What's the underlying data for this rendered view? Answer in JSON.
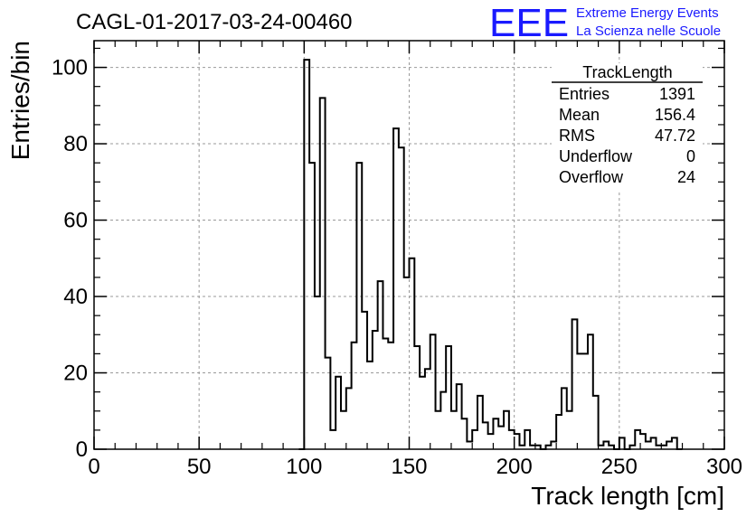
{
  "header": {
    "run_title": "CAGL-01-2017-03-24-00460",
    "logo_text": "EEE",
    "logo_line1": "Extreme Energy Events",
    "logo_line2": "La Scienza nelle Scuole",
    "logo_color": "#1a1aff"
  },
  "stats_box": {
    "title": "TrackLength",
    "rows": [
      {
        "label": "Entries",
        "value": "1391"
      },
      {
        "label": "Mean",
        "value": "156.4"
      },
      {
        "label": "RMS",
        "value": "47.72"
      },
      {
        "label": "Underflow",
        "value": "0"
      },
      {
        "label": "Overflow",
        "value": "24"
      }
    ]
  },
  "chart_data": {
    "type": "histogram",
    "xlabel": "Track length [cm]",
    "ylabel": "Entries/bin",
    "xlim": [
      0,
      300
    ],
    "ylim": [
      0,
      107
    ],
    "x_ticks": [
      0,
      50,
      100,
      150,
      200,
      250,
      300
    ],
    "y_ticks": [
      0,
      20,
      40,
      60,
      80,
      100
    ],
    "grid": true,
    "bin_width": 2.5,
    "bins": [
      {
        "x": 97.5,
        "y": 0
      },
      {
        "x": 100,
        "y": 102
      },
      {
        "x": 102.5,
        "y": 75
      },
      {
        "x": 105,
        "y": 40
      },
      {
        "x": 107.5,
        "y": 92
      },
      {
        "x": 110,
        "y": 24
      },
      {
        "x": 112.5,
        "y": 5
      },
      {
        "x": 115,
        "y": 19
      },
      {
        "x": 117.5,
        "y": 10
      },
      {
        "x": 120,
        "y": 16
      },
      {
        "x": 122.5,
        "y": 28
      },
      {
        "x": 125,
        "y": 75
      },
      {
        "x": 127.5,
        "y": 36
      },
      {
        "x": 130,
        "y": 23
      },
      {
        "x": 132.5,
        "y": 31
      },
      {
        "x": 135,
        "y": 44
      },
      {
        "x": 137.5,
        "y": 29
      },
      {
        "x": 140,
        "y": 28
      },
      {
        "x": 142.5,
        "y": 84
      },
      {
        "x": 145,
        "y": 79
      },
      {
        "x": 147.5,
        "y": 45
      },
      {
        "x": 150,
        "y": 50
      },
      {
        "x": 152.5,
        "y": 27
      },
      {
        "x": 155,
        "y": 19
      },
      {
        "x": 157.5,
        "y": 21
      },
      {
        "x": 160,
        "y": 30
      },
      {
        "x": 162.5,
        "y": 10
      },
      {
        "x": 165,
        "y": 15
      },
      {
        "x": 167.5,
        "y": 27
      },
      {
        "x": 170,
        "y": 10
      },
      {
        "x": 172.5,
        "y": 17
      },
      {
        "x": 175,
        "y": 8
      },
      {
        "x": 177.5,
        "y": 2
      },
      {
        "x": 180,
        "y": 5
      },
      {
        "x": 182.5,
        "y": 14
      },
      {
        "x": 185,
        "y": 7
      },
      {
        "x": 187.5,
        "y": 4
      },
      {
        "x": 190,
        "y": 8
      },
      {
        "x": 192.5,
        "y": 6
      },
      {
        "x": 195,
        "y": 10
      },
      {
        "x": 197.5,
        "y": 5
      },
      {
        "x": 200,
        "y": 4
      },
      {
        "x": 202.5,
        "y": 1
      },
      {
        "x": 205,
        "y": 5
      },
      {
        "x": 207.5,
        "y": 1
      },
      {
        "x": 210,
        "y": 1
      },
      {
        "x": 212.5,
        "y": 0
      },
      {
        "x": 215,
        "y": 1
      },
      {
        "x": 217.5,
        "y": 2
      },
      {
        "x": 220,
        "y": 9
      },
      {
        "x": 222.5,
        "y": 16
      },
      {
        "x": 225,
        "y": 10
      },
      {
        "x": 227.5,
        "y": 34
      },
      {
        "x": 230,
        "y": 25
      },
      {
        "x": 232.5,
        "y": 25
      },
      {
        "x": 235,
        "y": 30
      },
      {
        "x": 237.5,
        "y": 14
      },
      {
        "x": 240,
        "y": 1
      },
      {
        "x": 242.5,
        "y": 2
      },
      {
        "x": 245,
        "y": 1
      },
      {
        "x": 247.5,
        "y": 0
      },
      {
        "x": 250,
        "y": 3
      },
      {
        "x": 252.5,
        "y": 0
      },
      {
        "x": 255,
        "y": 1
      },
      {
        "x": 257.5,
        "y": 5
      },
      {
        "x": 260,
        "y": 4
      },
      {
        "x": 262.5,
        "y": 2
      },
      {
        "x": 265,
        "y": 3
      },
      {
        "x": 267.5,
        "y": 1
      },
      {
        "x": 270,
        "y": 1
      },
      {
        "x": 272.5,
        "y": 2
      },
      {
        "x": 275,
        "y": 3
      },
      {
        "x": 277.5,
        "y": 0
      }
    ]
  }
}
